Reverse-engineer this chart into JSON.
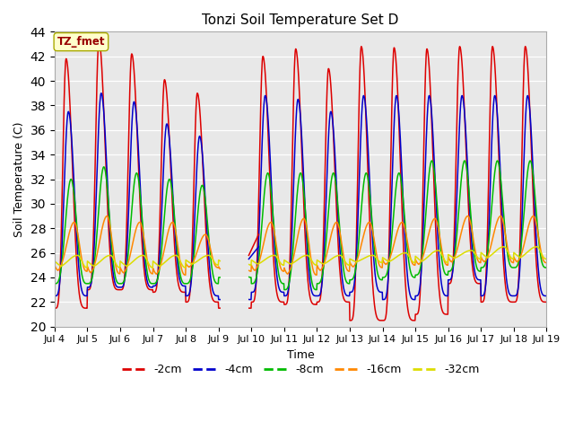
{
  "title": "Tonzi Soil Temperature Set D",
  "xlabel": "Time",
  "ylabel": "Soil Temperature (C)",
  "ylim": [
    20,
    44
  ],
  "xlim": [
    0,
    15
  ],
  "facecolor": "#e8e8e8",
  "legend_label": "TZ_fmet",
  "legend_box_facecolor": "#ffffcc",
  "legend_box_edgecolor": "#aaaa00",
  "series_colors": {
    "-2cm": "#dd0000",
    "-4cm": "#0000cc",
    "-8cm": "#00bb00",
    "-16cm": "#ff8800",
    "-32cm": "#dddd00"
  },
  "tick_labels": [
    "Jul 4",
    "Jul 5",
    "Jul 6",
    "Jul 7",
    "Jul 8",
    "Jul 9",
    "Jul 10",
    "Jul 11",
    "Jul 12",
    "Jul 13",
    "Jul 14",
    "Jul 15",
    "Jul 16",
    "Jul 17",
    "Jul 18",
    "Jul 19"
  ],
  "yticks": [
    20,
    22,
    24,
    26,
    28,
    30,
    32,
    34,
    36,
    38,
    40,
    42,
    44
  ],
  "grid_color": "#ffffff",
  "peak_2cm": [
    41.8,
    43.3,
    42.2,
    40.1,
    39.0,
    39.8,
    42.0,
    42.6,
    41.0,
    42.8,
    42.7,
    42.6,
    42.8,
    42.8
  ],
  "trough_2cm": [
    21.5,
    23.0,
    23.0,
    22.8,
    22.0,
    21.5,
    22.0,
    21.8,
    22.0,
    20.5,
    20.5,
    21.0,
    23.5,
    22.0
  ],
  "peak_4cm": [
    37.5,
    39.0,
    38.3,
    36.5,
    35.5,
    36.8,
    38.8,
    38.5,
    37.5,
    38.8,
    38.8,
    38.8,
    38.8,
    38.8
  ],
  "trough_4cm": [
    22.5,
    23.2,
    23.2,
    23.3,
    22.5,
    22.2,
    22.8,
    22.5,
    22.5,
    22.8,
    22.2,
    22.5,
    23.8,
    22.5
  ],
  "peak_8cm": [
    32.0,
    33.0,
    32.5,
    32.0,
    31.5,
    32.0,
    32.5,
    32.5,
    32.5,
    32.5,
    32.5,
    33.5,
    33.5,
    33.5
  ],
  "trough_8cm": [
    23.5,
    23.5,
    23.5,
    23.5,
    23.5,
    24.0,
    23.5,
    23.0,
    23.5,
    23.8,
    24.0,
    24.2,
    24.5,
    24.8
  ],
  "peak_16cm": [
    28.5,
    29.0,
    28.5,
    28.5,
    27.5,
    27.5,
    28.5,
    28.8,
    28.5,
    28.5,
    28.5,
    28.8,
    29.0,
    29.0
  ],
  "trough_16cm": [
    24.5,
    24.3,
    24.3,
    24.2,
    24.8,
    24.5,
    24.5,
    24.2,
    24.5,
    24.8,
    25.0,
    25.0,
    25.2,
    25.2
  ],
  "peak_32cm": [
    25.8,
    25.8,
    25.8,
    25.8,
    25.8,
    25.8,
    25.8,
    25.8,
    25.8,
    25.8,
    26.0,
    26.2,
    26.2,
    26.5
  ],
  "trough_32cm": [
    24.8,
    24.8,
    24.8,
    24.8,
    25.0,
    25.0,
    25.0,
    25.0,
    25.0,
    25.2,
    25.2,
    25.2,
    25.5,
    25.5
  ]
}
